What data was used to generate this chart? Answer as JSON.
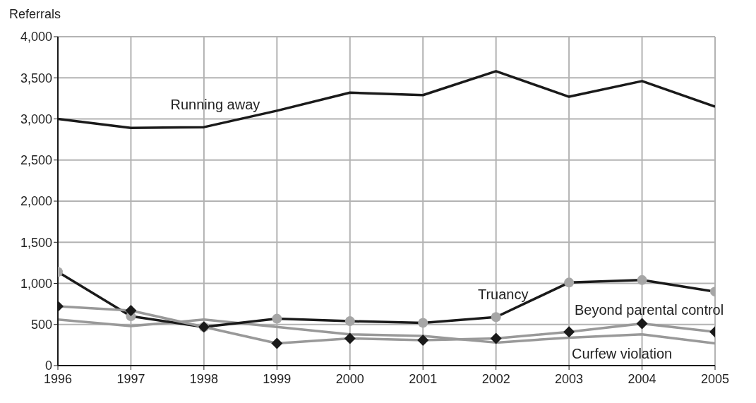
{
  "chart_data": {
    "type": "line",
    "ylabel": "Referrals",
    "x": [
      1996,
      1997,
      1998,
      1999,
      2000,
      2001,
      2002,
      2003,
      2004,
      2005
    ],
    "xlim": [
      1996,
      2005
    ],
    "xticks": [
      1996,
      1997,
      1998,
      1999,
      2000,
      2001,
      2002,
      2003,
      2004,
      2005
    ],
    "ylim": [
      0,
      4000
    ],
    "yticks": [
      {
        "value": 0,
        "label": "0"
      },
      {
        "value": 500,
        "label": "500"
      },
      {
        "value": 1000,
        "label": "1,000"
      },
      {
        "value": 1500,
        "label": "1,500"
      },
      {
        "value": 2000,
        "label": "2,000"
      },
      {
        "value": 2500,
        "label": "2,500"
      },
      {
        "value": 3000,
        "label": "3,000"
      },
      {
        "value": 3500,
        "label": "3,500"
      },
      {
        "value": 4000,
        "label": "4,000"
      }
    ],
    "grid": true,
    "legend": false,
    "line_style": "solid",
    "series": [
      {
        "name": "Running away",
        "color": "#1a1a1a",
        "marker": "none",
        "values": [
          3000,
          2890,
          2900,
          3100,
          3320,
          3290,
          3580,
          3270,
          3460,
          3150
        ]
      },
      {
        "name": "Truancy",
        "color": "#1a1a1a",
        "marker": "circle",
        "values": [
          1140,
          600,
          470,
          570,
          540,
          520,
          590,
          1010,
          1040,
          900
        ]
      },
      {
        "name": "Beyond parental control",
        "color": "#999999",
        "marker": "diamond",
        "values": [
          720,
          670,
          470,
          270,
          330,
          310,
          330,
          410,
          510,
          410
        ]
      },
      {
        "name": "Curfew violation",
        "color": "#999999",
        "marker": "none",
        "values": [
          560,
          480,
          560,
          470,
          380,
          360,
          280,
          340,
          380,
          270
        ]
      }
    ]
  }
}
